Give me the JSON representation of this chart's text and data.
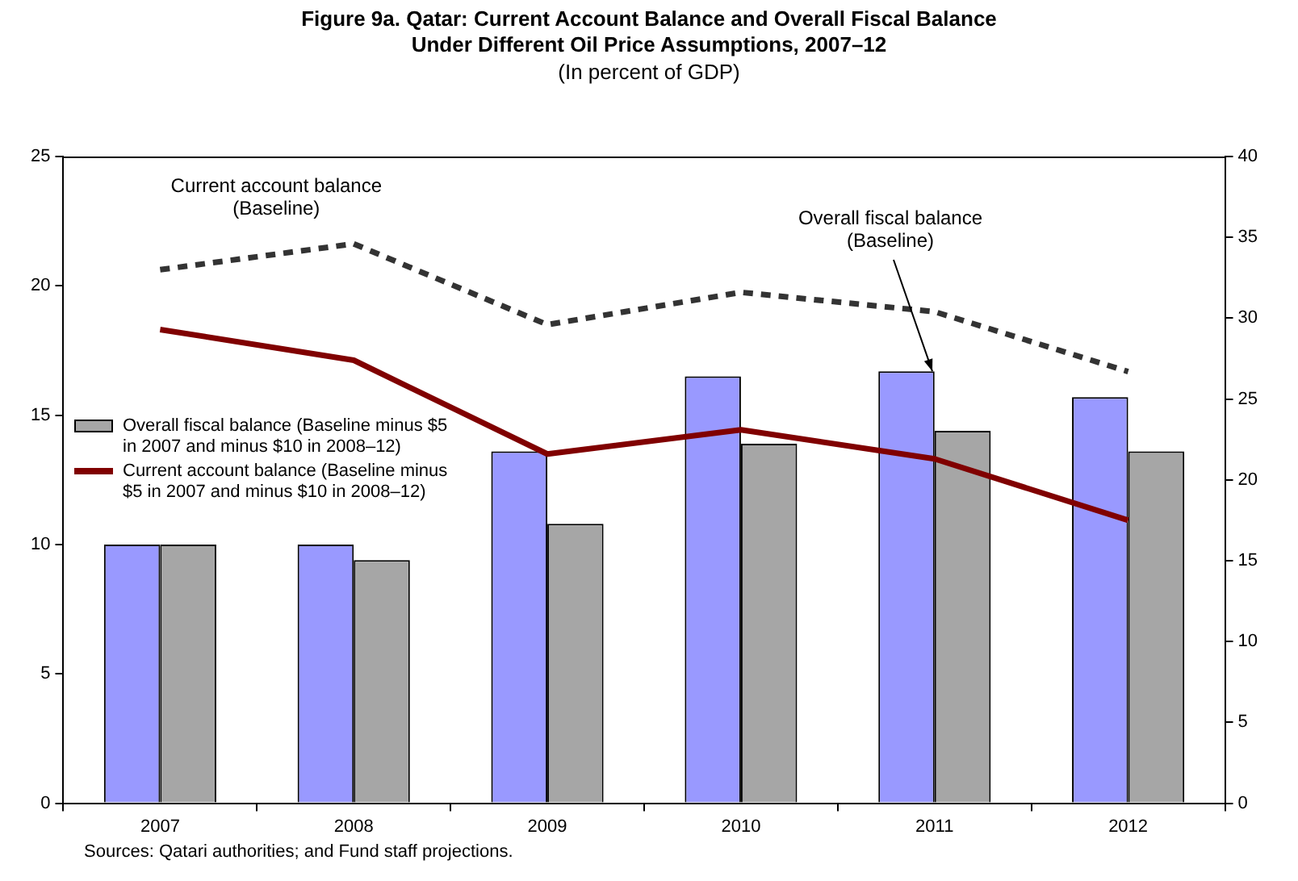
{
  "chart_data": {
    "type": "bar",
    "title": "Figure 9a. Qatar: Current Account Balance and Overall Fiscal Balance\nUnder Different Oil Price Assumptions, 2007–12",
    "subtitle": "(In percent of GDP)",
    "categories": [
      "2007",
      "2008",
      "2009",
      "2010",
      "2011",
      "2012"
    ],
    "series": [
      {
        "color": "#9999ff",
        "values": [
          10.0,
          10.0,
          13.6,
          16.5,
          16.7,
          15.7
        ]
      },
      {
        "name": "Overall fiscal balance (Baseline minus $5 in 2007 and minus $10 in 2008–12)",
        "color": "#a6a6a6",
        "values": [
          10.0,
          9.4,
          10.8,
          13.9,
          14.4,
          13.6
        ]
      },
      {
        "type": "line",
        "axis": "y2",
        "line_style": "dashed",
        "color": "#333333",
        "values": [
          33.0,
          34.6,
          29.6,
          31.6,
          30.4,
          26.7
        ]
      },
      {
        "type": "line",
        "axis": "y2",
        "name": "Current account balance (Baseline minus $5 in 2007 and minus $10 in 2008–12)",
        "color": "#800000",
        "values": [
          29.3,
          27.4,
          21.6,
          23.1,
          21.3,
          17.5
        ]
      }
    ],
    "ylim": [
      0,
      25
    ],
    "yticks": [
      0,
      5,
      10,
      15,
      20,
      25
    ],
    "y2lim": [
      0,
      40
    ],
    "y2ticks": [
      0,
      5,
      10,
      15,
      20,
      25,
      30,
      35,
      40
    ],
    "grid": false,
    "legend": "left",
    "marker": "none",
    "annotations": [
      "Current account balance (Baseline)",
      {
        "text": "Overall fiscal balance (Baseline)",
        "x": "2011",
        "y": 16.7
      },
      "Sources: Qatari authorities; and Fund staff projections."
    ]
  }
}
